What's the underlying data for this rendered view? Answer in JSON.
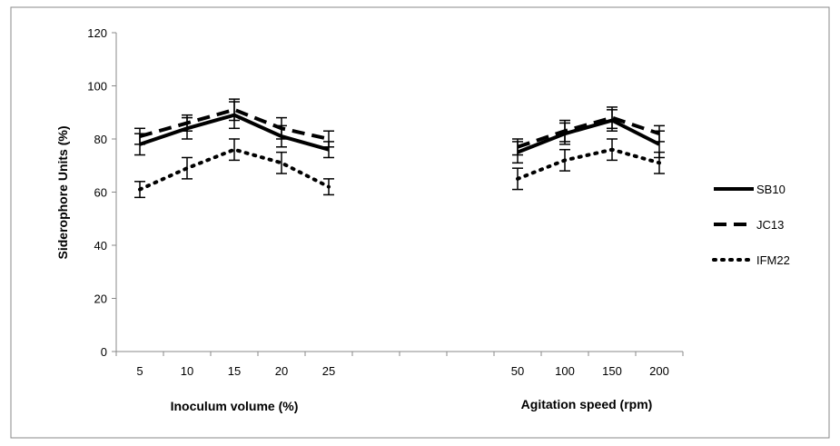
{
  "chart_data": {
    "type": "line",
    "title": "",
    "ylabel": "Siderophore Units (%)",
    "xlabels": [
      "Inoculum volume (%)",
      "Agitation speed (rpm)"
    ],
    "ylim": [
      0,
      120
    ],
    "yticks": [
      0,
      20,
      40,
      60,
      80,
      100,
      120
    ],
    "categories": [
      "5",
      "10",
      "15",
      "20",
      "25",
      "",
      "",
      "",
      "50",
      "100",
      "150",
      "200"
    ],
    "grid": false,
    "legend_position": "right",
    "series": [
      {
        "name": "SB10",
        "style": "solid",
        "values": [
          78,
          84,
          89,
          81,
          76,
          null,
          null,
          null,
          75,
          82,
          87,
          78
        ],
        "errors": [
          4,
          4,
          5,
          4,
          3,
          null,
          null,
          null,
          4,
          4,
          4,
          5
        ]
      },
      {
        "name": "JC13",
        "style": "dashed",
        "values": [
          81,
          86,
          91,
          84,
          80,
          null,
          null,
          null,
          77,
          83,
          88,
          82
        ],
        "errors": [
          3,
          3,
          4,
          4,
          3,
          null,
          null,
          null,
          3,
          4,
          4,
          3
        ]
      },
      {
        "name": "IFM22",
        "style": "dotted",
        "values": [
          61,
          69,
          76,
          71,
          62,
          null,
          null,
          null,
          65,
          72,
          76,
          71
        ],
        "errors": [
          3,
          4,
          4,
          4,
          3,
          null,
          null,
          null,
          4,
          4,
          4,
          4
        ]
      }
    ]
  }
}
